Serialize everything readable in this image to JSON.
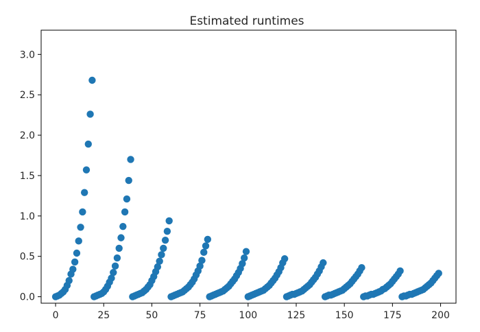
{
  "chart_data": {
    "type": "scatter",
    "title": "Estimated runtimes",
    "xlabel": "",
    "ylabel": "",
    "xlim": [
      -7.5,
      208
    ],
    "ylim": [
      -0.08,
      3.3
    ],
    "xticks": [
      0,
      25,
      50,
      75,
      100,
      125,
      150,
      175,
      200
    ],
    "xtick_labels": [
      "0",
      "25",
      "50",
      "75",
      "100",
      "125",
      "150",
      "175",
      "200"
    ],
    "yticks": [
      0.0,
      0.5,
      1.0,
      1.5,
      2.0,
      2.5,
      3.0
    ],
    "ytick_labels": [
      "0.0",
      "0.5",
      "1.0",
      "1.5",
      "2.0",
      "2.5",
      "3.0"
    ],
    "grid": false,
    "color": "#1f77b4",
    "series": [
      {
        "x": [
          0,
          1,
          2,
          3,
          4,
          5,
          6,
          7,
          8,
          9,
          10,
          11,
          12,
          13,
          14,
          15,
          16,
          17,
          18,
          19,
          20,
          21,
          22,
          23,
          24,
          25,
          26,
          27,
          28,
          29,
          30,
          31,
          32,
          33,
          34,
          35,
          36,
          37,
          38,
          39,
          40,
          41,
          42,
          43,
          44,
          45,
          46,
          47,
          48,
          49,
          50,
          51,
          52,
          53,
          54,
          55,
          56,
          57,
          58,
          59,
          60,
          61,
          62,
          63,
          64,
          65,
          66,
          67,
          68,
          69,
          70,
          71,
          72,
          73,
          74,
          75,
          76,
          77,
          78,
          79,
          80,
          81,
          82,
          83,
          84,
          85,
          86,
          87,
          88,
          89,
          90,
          91,
          92,
          93,
          94,
          95,
          96,
          97,
          98,
          99,
          100,
          101,
          102,
          103,
          104,
          105,
          106,
          107,
          108,
          109,
          110,
          111,
          112,
          113,
          114,
          115,
          116,
          117,
          118,
          119,
          120,
          121,
          122,
          123,
          124,
          125,
          126,
          127,
          128,
          129,
          130,
          131,
          132,
          133,
          134,
          135,
          136,
          137,
          138,
          139,
          140,
          141,
          142,
          143,
          144,
          145,
          146,
          147,
          148,
          149,
          150,
          151,
          152,
          153,
          154,
          155,
          156,
          157,
          158,
          159,
          160,
          161,
          162,
          163,
          164,
          165,
          166,
          167,
          168,
          169,
          170,
          171,
          172,
          173,
          174,
          175,
          176,
          177,
          178,
          179,
          180,
          181,
          182,
          183,
          184,
          185,
          186,
          187,
          188,
          189,
          190,
          191,
          192,
          193,
          194,
          195,
          196,
          197,
          198,
          199
        ],
        "y": [
          0.0,
          0.01,
          0.02,
          0.04,
          0.06,
          0.09,
          0.14,
          0.2,
          0.28,
          0.34,
          0.43,
          0.54,
          0.69,
          0.86,
          1.05,
          1.29,
          1.57,
          1.89,
          2.26,
          2.68,
          0.0,
          0.01,
          0.02,
          0.03,
          0.04,
          0.06,
          0.09,
          0.13,
          0.18,
          0.23,
          0.3,
          0.38,
          0.48,
          0.6,
          0.73,
          0.87,
          1.05,
          1.21,
          1.44,
          1.7,
          0.0,
          0.01,
          0.02,
          0.03,
          0.04,
          0.05,
          0.07,
          0.09,
          0.12,
          0.15,
          0.2,
          0.25,
          0.31,
          0.37,
          0.44,
          0.52,
          0.6,
          0.7,
          0.81,
          0.94,
          0.0,
          0.01,
          0.02,
          0.03,
          0.04,
          0.05,
          0.06,
          0.08,
          0.1,
          0.12,
          0.15,
          0.18,
          0.22,
          0.27,
          0.32,
          0.38,
          0.45,
          0.55,
          0.63,
          0.71,
          0.0,
          0.01,
          0.02,
          0.03,
          0.04,
          0.05,
          0.06,
          0.07,
          0.09,
          0.11,
          0.13,
          0.16,
          0.19,
          0.22,
          0.26,
          0.3,
          0.35,
          0.41,
          0.48,
          0.56,
          0.0,
          0.01,
          0.02,
          0.03,
          0.04,
          0.05,
          0.06,
          0.07,
          0.08,
          0.1,
          0.12,
          0.14,
          0.17,
          0.2,
          0.23,
          0.27,
          0.31,
          0.36,
          0.42,
          0.47,
          0.0,
          0.01,
          0.02,
          0.03,
          0.03,
          0.04,
          0.05,
          0.06,
          0.07,
          0.09,
          0.11,
          0.13,
          0.15,
          0.18,
          0.21,
          0.24,
          0.28,
          0.32,
          0.37,
          0.42,
          0.0,
          0.01,
          0.02,
          0.02,
          0.03,
          0.04,
          0.05,
          0.06,
          0.07,
          0.08,
          0.1,
          0.12,
          0.14,
          0.16,
          0.19,
          0.22,
          0.25,
          0.28,
          0.32,
          0.36,
          0.0,
          0.01,
          0.01,
          0.02,
          0.03,
          0.03,
          0.04,
          0.05,
          0.06,
          0.07,
          0.09,
          0.1,
          0.12,
          0.14,
          0.16,
          0.19,
          0.22,
          0.25,
          0.28,
          0.32,
          0.0,
          0.01,
          0.01,
          0.02,
          0.03,
          0.03,
          0.04,
          0.05,
          0.06,
          0.07,
          0.08,
          0.09,
          0.11,
          0.13,
          0.15,
          0.17,
          0.2,
          0.23,
          0.26,
          0.29
        ]
      }
    ]
  }
}
